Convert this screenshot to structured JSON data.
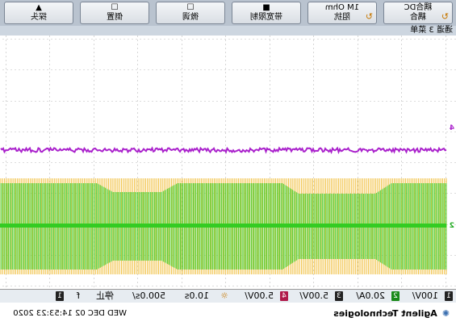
{
  "softkeys": [
    {
      "line1": "耦合DC",
      "line2": "耦合",
      "icon": "rotate-icon"
    },
    {
      "line1": "1M Ohm",
      "line2": "阻抗",
      "icon": "rotate-icon"
    },
    {
      "line1": "■",
      "line2": "带宽限制",
      "icon": ""
    },
    {
      "line1": "",
      "line2": "微调",
      "icon": ""
    },
    {
      "line1": "",
      "line2": "倒置",
      "icon": ""
    },
    {
      "line1": "▲",
      "line2": "探头",
      "icon": ""
    }
  ],
  "menu_title": "通道 3 菜单",
  "status": {
    "ch1": {
      "num": "1",
      "scale": "100V/",
      "color": "#e8b000"
    },
    "ch2": {
      "num": "2",
      "scale": "20.0A/",
      "color": "#22bb22"
    },
    "ch3": {
      "num": "3",
      "scale": "5.00V/",
      "color": "#2255dd"
    },
    "ch4": {
      "num": "4",
      "scale": "5.00V/",
      "color": "#dd2266"
    },
    "timebase": "10.0s",
    "delay": "500.0s/",
    "mode": "停止",
    "trig": "f",
    "trig_ch": "1"
  },
  "brand": "Agilent Technologies",
  "timestamp": "WED DEC 02 14:53:23 2020",
  "markers": {
    "ch4": "4",
    "ch2": "2"
  },
  "waveform_colors": {
    "ch1": "#f2c44a",
    "ch2": "#33cc22",
    "ch4": "#aa22cc",
    "grid": "#bbbbbb"
  }
}
